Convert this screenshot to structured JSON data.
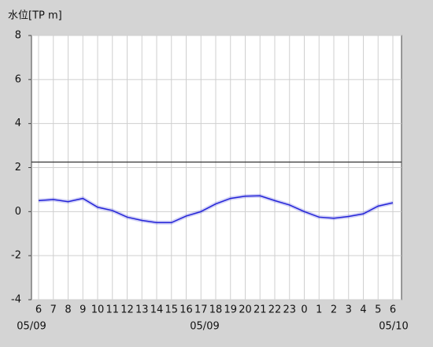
{
  "chart_data": {
    "type": "line",
    "y_label": "水位[TP m]",
    "categories": [
      "6",
      "7",
      "8",
      "9",
      "10",
      "11",
      "12",
      "13",
      "14",
      "15",
      "16",
      "17",
      "18",
      "19",
      "20",
      "21",
      "22",
      "23",
      "0",
      "1",
      "2",
      "3",
      "4",
      "5",
      "6"
    ],
    "date_labels": [
      "05/09",
      "05/09",
      "05/10"
    ],
    "values": [
      0.5,
      0.55,
      0.45,
      0.6,
      0.2,
      0.05,
      -0.25,
      -0.4,
      -0.5,
      -0.5,
      -0.2,
      0,
      0.35,
      0.6,
      0.7,
      0.72,
      0.5,
      0.3,
      0,
      -0.25,
      -0.3,
      -0.22,
      -0.1,
      0.25,
      0.4
    ],
    "color": "#2323d8",
    "reference_line": 2.25,
    "reference_color": "#333333",
    "ylim": [
      -4,
      8
    ],
    "yticks": [
      -4,
      -2,
      0,
      2,
      4,
      6,
      8
    ],
    "grid": true
  }
}
